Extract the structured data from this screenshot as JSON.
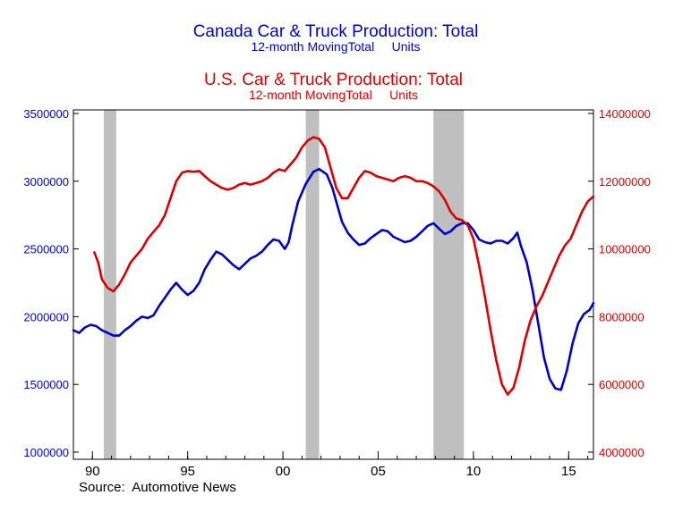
{
  "colors": {
    "canada": "#0000cc",
    "us": "#dd0000",
    "recession": "#bfbfbf",
    "axis": "#000000"
  },
  "titles": {
    "canada_title": "Canada Car & Truck Production: Total",
    "canada_subtitle": "12-month MovingTotal     Units",
    "us_title": "U.S. Car & Truck Production: Total",
    "us_subtitle": "12-month MovingTotal     Units"
  },
  "source": "Source:  Automotive News",
  "chart_data": {
    "type": "line",
    "xlim": [
      1989.0,
      2016.3
    ],
    "x_ticks": [
      {
        "x": 1990,
        "label": "90"
      },
      {
        "x": 1995,
        "label": "95"
      },
      {
        "x": 2000,
        "label": "00"
      },
      {
        "x": 2005,
        "label": "05"
      },
      {
        "x": 2010,
        "label": "10"
      },
      {
        "x": 2015,
        "label": "15"
      }
    ],
    "y_left": {
      "range": [
        1000000,
        3500000
      ],
      "ticks": [
        "1000000",
        "1500000",
        "2000000",
        "2500000",
        "3000000",
        "3500000"
      ]
    },
    "y_right": {
      "range": [
        4000000,
        14000000
      ],
      "ticks": [
        "4000000",
        "6000000",
        "8000000",
        "10000000",
        "12000000",
        "14000000"
      ]
    },
    "recessions": [
      [
        1990.6,
        1991.25
      ],
      [
        2001.2,
        2001.9
      ],
      [
        2007.9,
        2009.5
      ]
    ],
    "series": [
      {
        "name": "Canada Car & Truck Production: Total",
        "axis": "left",
        "points": [
          [
            1989.0,
            1900000
          ],
          [
            1989.3,
            1880000
          ],
          [
            1989.6,
            1920000
          ],
          [
            1989.9,
            1940000
          ],
          [
            1990.2,
            1930000
          ],
          [
            1990.5,
            1900000
          ],
          [
            1990.8,
            1880000
          ],
          [
            1991.1,
            1860000
          ],
          [
            1991.4,
            1860000
          ],
          [
            1991.7,
            1900000
          ],
          [
            1992.0,
            1930000
          ],
          [
            1992.3,
            1970000
          ],
          [
            1992.6,
            2000000
          ],
          [
            1992.9,
            1990000
          ],
          [
            1993.2,
            2010000
          ],
          [
            1993.5,
            2080000
          ],
          [
            1993.8,
            2140000
          ],
          [
            1994.1,
            2200000
          ],
          [
            1994.4,
            2250000
          ],
          [
            1994.7,
            2200000
          ],
          [
            1995.0,
            2160000
          ],
          [
            1995.3,
            2190000
          ],
          [
            1995.6,
            2250000
          ],
          [
            1995.9,
            2350000
          ],
          [
            1996.2,
            2420000
          ],
          [
            1996.5,
            2480000
          ],
          [
            1996.8,
            2460000
          ],
          [
            1997.1,
            2420000
          ],
          [
            1997.4,
            2380000
          ],
          [
            1997.7,
            2350000
          ],
          [
            1998.0,
            2390000
          ],
          [
            1998.3,
            2430000
          ],
          [
            1998.6,
            2450000
          ],
          [
            1998.9,
            2480000
          ],
          [
            1999.2,
            2530000
          ],
          [
            1999.5,
            2570000
          ],
          [
            1999.8,
            2560000
          ],
          [
            2000.1,
            2500000
          ],
          [
            2000.3,
            2550000
          ],
          [
            2000.5,
            2680000
          ],
          [
            2000.8,
            2850000
          ],
          [
            2001.2,
            2980000
          ],
          [
            2001.6,
            3070000
          ],
          [
            2001.9,
            3090000
          ],
          [
            2002.3,
            3050000
          ],
          [
            2002.6,
            2950000
          ],
          [
            2002.9,
            2800000
          ],
          [
            2003.1,
            2700000
          ],
          [
            2003.4,
            2620000
          ],
          [
            2003.7,
            2570000
          ],
          [
            2004.0,
            2530000
          ],
          [
            2004.3,
            2540000
          ],
          [
            2004.6,
            2580000
          ],
          [
            2004.9,
            2610000
          ],
          [
            2005.2,
            2640000
          ],
          [
            2005.5,
            2630000
          ],
          [
            2005.8,
            2590000
          ],
          [
            2006.1,
            2570000
          ],
          [
            2006.4,
            2550000
          ],
          [
            2006.7,
            2560000
          ],
          [
            2007.0,
            2590000
          ],
          [
            2007.3,
            2630000
          ],
          [
            2007.6,
            2670000
          ],
          [
            2007.9,
            2690000
          ],
          [
            2008.2,
            2650000
          ],
          [
            2008.5,
            2610000
          ],
          [
            2008.8,
            2630000
          ],
          [
            2009.1,
            2670000
          ],
          [
            2009.4,
            2690000
          ],
          [
            2009.7,
            2690000
          ],
          [
            2010.0,
            2640000
          ],
          [
            2010.3,
            2570000
          ],
          [
            2010.6,
            2550000
          ],
          [
            2010.9,
            2540000
          ],
          [
            2011.2,
            2560000
          ],
          [
            2011.5,
            2560000
          ],
          [
            2011.8,
            2540000
          ],
          [
            2012.1,
            2580000
          ],
          [
            2012.3,
            2620000
          ],
          [
            2012.5,
            2520000
          ],
          [
            2012.8,
            2400000
          ],
          [
            2013.1,
            2200000
          ],
          [
            2013.4,
            1950000
          ],
          [
            2013.7,
            1700000
          ],
          [
            2014.0,
            1540000
          ],
          [
            2014.3,
            1470000
          ],
          [
            2014.6,
            1460000
          ],
          [
            2014.9,
            1600000
          ],
          [
            2015.2,
            1800000
          ],
          [
            2015.5,
            1950000
          ],
          [
            2015.8,
            2020000
          ],
          [
            2016.1,
            2050000
          ],
          [
            2016.3,
            2100000
          ]
        ]
      },
      {
        "name": "U.S. Car & Truck Production: Total",
        "axis": "right",
        "points": [
          [
            1990.1,
            9900000
          ],
          [
            1990.3,
            9600000
          ],
          [
            1990.5,
            9100000
          ],
          [
            1990.8,
            8850000
          ],
          [
            1991.1,
            8750000
          ],
          [
            1991.4,
            8950000
          ],
          [
            1991.7,
            9250000
          ],
          [
            1992.0,
            9600000
          ],
          [
            1992.3,
            9800000
          ],
          [
            1992.6,
            10000000
          ],
          [
            1992.9,
            10300000
          ],
          [
            1993.2,
            10500000
          ],
          [
            1993.5,
            10700000
          ],
          [
            1993.8,
            11000000
          ],
          [
            1994.1,
            11500000
          ],
          [
            1994.4,
            12000000
          ],
          [
            1994.7,
            12250000
          ],
          [
            1995.0,
            12300000
          ],
          [
            1995.3,
            12280000
          ],
          [
            1995.6,
            12300000
          ],
          [
            1995.9,
            12150000
          ],
          [
            1996.2,
            12000000
          ],
          [
            1996.5,
            11900000
          ],
          [
            1996.8,
            11800000
          ],
          [
            1997.1,
            11750000
          ],
          [
            1997.4,
            11800000
          ],
          [
            1997.7,
            11900000
          ],
          [
            1998.0,
            11950000
          ],
          [
            1998.3,
            11900000
          ],
          [
            1998.6,
            11950000
          ],
          [
            1998.9,
            12000000
          ],
          [
            1999.2,
            12100000
          ],
          [
            1999.5,
            12250000
          ],
          [
            1999.8,
            12350000
          ],
          [
            2000.1,
            12300000
          ],
          [
            2000.4,
            12500000
          ],
          [
            2000.7,
            12700000
          ],
          [
            2001.0,
            13000000
          ],
          [
            2001.3,
            13200000
          ],
          [
            2001.6,
            13300000
          ],
          [
            2001.9,
            13250000
          ],
          [
            2002.2,
            13000000
          ],
          [
            2002.5,
            12400000
          ],
          [
            2002.8,
            11800000
          ],
          [
            2003.1,
            11500000
          ],
          [
            2003.4,
            11500000
          ],
          [
            2003.7,
            11800000
          ],
          [
            2004.0,
            12100000
          ],
          [
            2004.3,
            12300000
          ],
          [
            2004.6,
            12250000
          ],
          [
            2004.9,
            12150000
          ],
          [
            2005.2,
            12100000
          ],
          [
            2005.5,
            12050000
          ],
          [
            2005.8,
            12000000
          ],
          [
            2006.1,
            12100000
          ],
          [
            2006.4,
            12150000
          ],
          [
            2006.7,
            12100000
          ],
          [
            2007.0,
            12000000
          ],
          [
            2007.3,
            12000000
          ],
          [
            2007.6,
            11950000
          ],
          [
            2007.9,
            11850000
          ],
          [
            2008.2,
            11700000
          ],
          [
            2008.5,
            11450000
          ],
          [
            2008.8,
            11100000
          ],
          [
            2009.1,
            10900000
          ],
          [
            2009.4,
            10850000
          ],
          [
            2009.7,
            10700000
          ],
          [
            2010.0,
            10300000
          ],
          [
            2010.3,
            9500000
          ],
          [
            2010.6,
            8600000
          ],
          [
            2010.9,
            7600000
          ],
          [
            2011.2,
            6700000
          ],
          [
            2011.5,
            6000000
          ],
          [
            2011.8,
            5700000
          ],
          [
            2012.1,
            5900000
          ],
          [
            2012.4,
            6500000
          ],
          [
            2012.7,
            7300000
          ],
          [
            2013.0,
            7900000
          ],
          [
            2013.3,
            8300000
          ],
          [
            2013.6,
            8600000
          ],
          [
            2013.9,
            9000000
          ],
          [
            2014.2,
            9400000
          ],
          [
            2014.5,
            9800000
          ],
          [
            2014.8,
            10100000
          ],
          [
            2015.1,
            10300000
          ],
          [
            2015.4,
            10700000
          ],
          [
            2015.7,
            11100000
          ],
          [
            2016.0,
            11400000
          ],
          [
            2016.3,
            11550000
          ]
        ]
      }
    ]
  }
}
